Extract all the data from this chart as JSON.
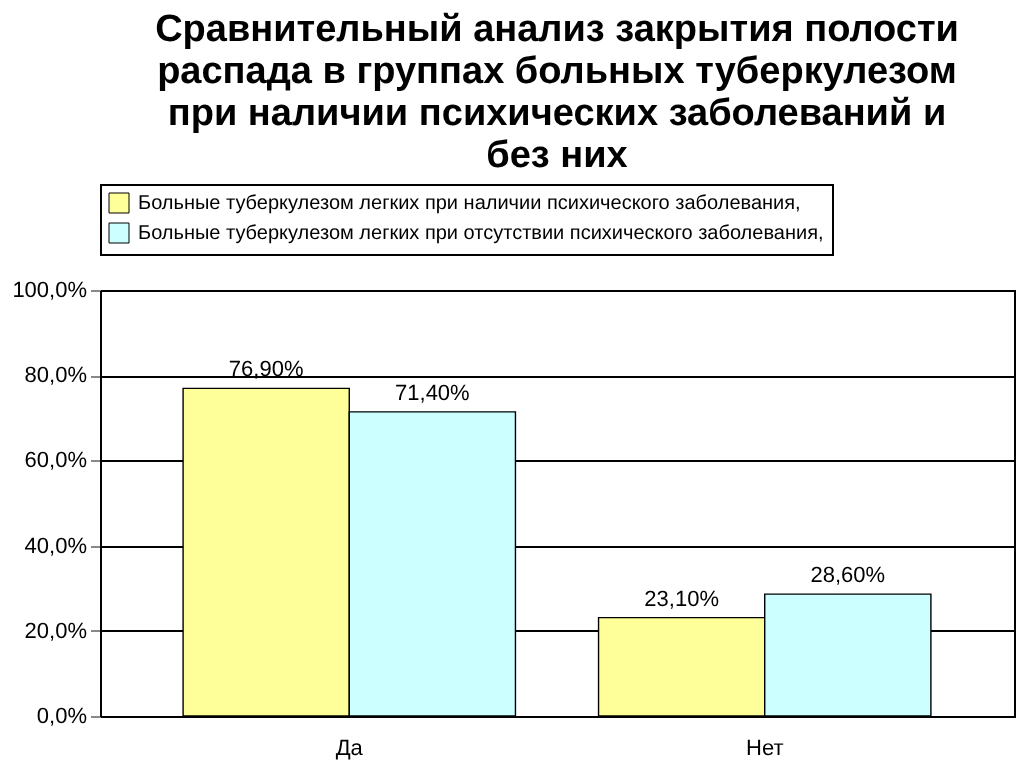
{
  "chart_data": {
    "type": "bar",
    "title": "Сравнительный анализ закрытия полости распада в группах больных туберкулезом при наличии психических заболеваний и без них",
    "categories": [
      "Да",
      "Нет"
    ],
    "series": [
      {
        "name": "Больные туберкулезом легких при наличии психического заболевания,",
        "color": "#ffff99",
        "values": [
          76.9,
          23.1
        ],
        "value_labels": [
          "76,90%",
          "23,10%"
        ]
      },
      {
        "name": "Больные туберкулезом легких при отсутствии психического заболевания,",
        "color": "#ccffff",
        "values": [
          71.4,
          28.6
        ],
        "value_labels": [
          "71,40%",
          "28,60%"
        ]
      }
    ],
    "ylim": [
      0,
      100
    ],
    "yticks": [
      {
        "value": 0,
        "label": "0,0%"
      },
      {
        "value": 20,
        "label": "20,0%"
      },
      {
        "value": 40,
        "label": "40,0%"
      },
      {
        "value": 60,
        "label": "60,0%"
      },
      {
        "value": 80,
        "label": "80,0%"
      },
      {
        "value": 100,
        "label": "100,0%"
      }
    ],
    "grid": "y",
    "legend": "top"
  }
}
